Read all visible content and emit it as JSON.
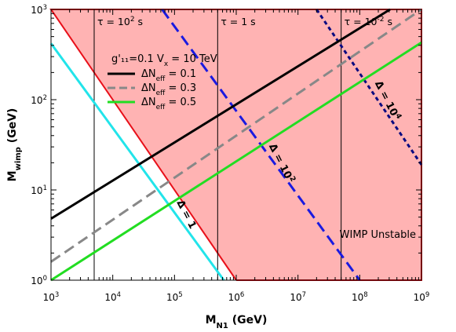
{
  "chart_data": {
    "type": "line",
    "xscale": "log",
    "yscale": "log",
    "xlim": [
      1000,
      1000000000
    ],
    "ylim": [
      1,
      1000
    ],
    "xlabel": {
      "main": "M",
      "sub": "N1",
      "unit": " (GeV)"
    },
    "ylabel": {
      "main": "M",
      "sub": "wimp",
      "unit": " (GeV)"
    },
    "x_ticks": [
      {
        "value": 1000,
        "base": "10",
        "exp": "3"
      },
      {
        "value": 10000,
        "base": "10",
        "exp": "4"
      },
      {
        "value": 100000,
        "base": "10",
        "exp": "5"
      },
      {
        "value": 1000000,
        "base": "10",
        "exp": "6"
      },
      {
        "value": 10000000,
        "base": "10",
        "exp": "7"
      },
      {
        "value": 100000000,
        "base": "10",
        "exp": "8"
      },
      {
        "value": 1000000000,
        "base": "10",
        "exp": "9"
      }
    ],
    "y_ticks": [
      {
        "value": 1,
        "base": "10",
        "exp": "0"
      },
      {
        "value": 10,
        "base": "10",
        "exp": "1"
      },
      {
        "value": 100,
        "base": "10",
        "exp": "2"
      },
      {
        "value": 1000,
        "base": "10",
        "exp": "3"
      }
    ],
    "shaded_region": {
      "label": "WIMP Unstable",
      "color": "#ffb3b3",
      "edge_color": "#e8101a",
      "boundary": [
        [
          1000,
          1000
        ],
        [
          1000000,
          1
        ]
      ]
    },
    "tau_lines": [
      {
        "x": 5000,
        "label": "τ = 10",
        "exp": "2",
        "unit": " s"
      },
      {
        "x": 500000,
        "label": "τ = 1 s",
        "exp": "",
        "unit": ""
      },
      {
        "x": 50000000,
        "label": "τ = 10",
        "exp": "-2",
        "unit": " s"
      }
    ],
    "delta_lines": [
      {
        "label": "Δ = 1",
        "exp": "",
        "color": "#22e4ea",
        "width": 3,
        "dash": "",
        "points": [
          [
            1000,
            420
          ],
          [
            630000,
            1
          ]
        ]
      },
      {
        "label": "Δ = 10",
        "exp": "2",
        "color": "#1a1ae0",
        "width": 3,
        "dash": "14,7",
        "points": [
          [
            63000,
            1000
          ],
          [
            100000000,
            1
          ]
        ]
      },
      {
        "label": "Δ = 10",
        "exp": "4",
        "color": "#0a0a80",
        "width": 3,
        "dash": "5,4",
        "points": [
          [
            20000000,
            1000
          ],
          [
            1000000000,
            19
          ]
        ]
      }
    ],
    "legend_header": "g'₁₁=0.1  V",
    "legend_header_sub": "x",
    "legend_header_tail": " = 10 TeV",
    "series": [
      {
        "name": "ΔN",
        "sub": "eff",
        "tail": " = 0.1",
        "color": "#000000",
        "dash": "",
        "points": [
          [
            1000,
            4.8
          ],
          [
            310000000,
            1000
          ]
        ]
      },
      {
        "name": "ΔN",
        "sub": "eff",
        "tail": " = 0.3",
        "color": "#888888",
        "dash": "14,7",
        "points": [
          [
            1000,
            1.6
          ],
          [
            1000000000,
            1000
          ]
        ]
      },
      {
        "name": "ΔN",
        "sub": "eff",
        "tail": " = 0.5",
        "color": "#22dd22",
        "dash": "",
        "points": [
          [
            1000,
            1
          ],
          [
            1000000000,
            430
          ]
        ]
      }
    ]
  }
}
